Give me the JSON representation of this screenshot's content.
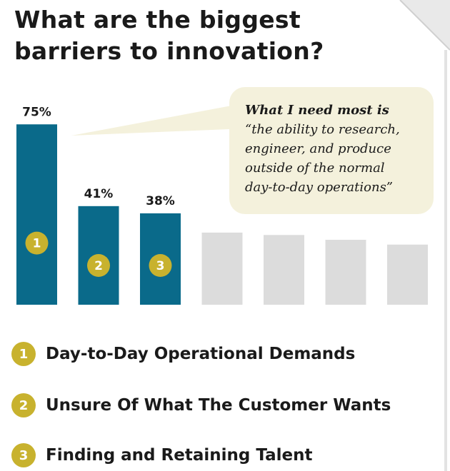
{
  "title_line1": "What are the biggest",
  "title_line2": "barriers to innovation?",
  "colors": {
    "highlight_bar": "#0a6a8a",
    "other_bar": "#dcdcdc",
    "badge": "#c8b22e",
    "bubble": "#f4f1dc",
    "text": "#1a1a1a"
  },
  "callout": {
    "heading": "What I need most is",
    "quote_lines": [
      "“the ability to research,",
      "engineer, and produce",
      "outside of the normal",
      "day-to-day operations”"
    ]
  },
  "chart_data": {
    "type": "bar",
    "ylim": [
      0,
      100
    ],
    "bars": [
      {
        "value": 75,
        "label": "75%",
        "rank": "1",
        "highlighted": true
      },
      {
        "value": 41,
        "label": "41%",
        "rank": "2",
        "highlighted": true
      },
      {
        "value": 38,
        "label": "38%",
        "rank": "3",
        "highlighted": true
      },
      {
        "value": 30,
        "label": "",
        "rank": "",
        "highlighted": false
      },
      {
        "value": 29,
        "label": "",
        "rank": "",
        "highlighted": false
      },
      {
        "value": 27,
        "label": "",
        "rank": "",
        "highlighted": false
      },
      {
        "value": 25,
        "label": "",
        "rank": "",
        "highlighted": false
      }
    ]
  },
  "legend": [
    {
      "number": "1",
      "label": "Day-to-Day Operational Demands"
    },
    {
      "number": "2",
      "label": "Unsure Of What The Customer Wants"
    },
    {
      "number": "3",
      "label": "Finding and Retaining Talent"
    }
  ]
}
